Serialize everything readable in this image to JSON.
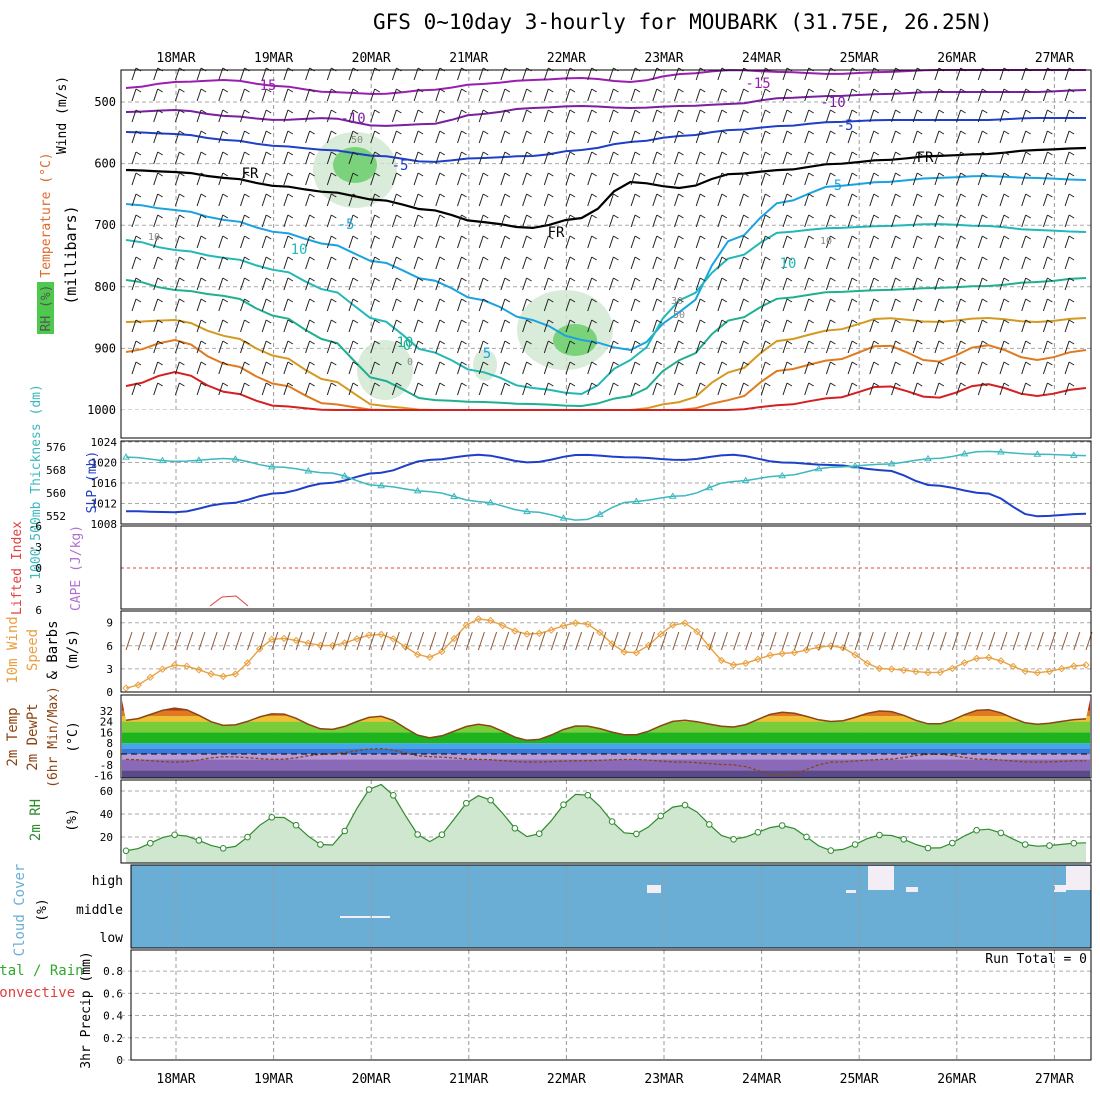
{
  "title": "GFS 0~10day 3-hourly for MOUBARK (31.75E, 26.25N)",
  "date_labels": [
    "18MAR",
    "19MAR",
    "20MAR",
    "21MAR",
    "22MAR",
    "23MAR",
    "24MAR",
    "25MAR",
    "26MAR",
    "27MAR"
  ],
  "panels": {
    "upper": {
      "ylabel_main": "(millibars)",
      "label_wind": "Wind (m/s)",
      "label_temp": "Temperature (°C)",
      "label_rh": "RH (%)",
      "yticks": [
        "500",
        "600",
        "700",
        "800",
        "900",
        "1000"
      ],
      "temp_contour_labels": [
        "15",
        "-15",
        "-10",
        "-10",
        "-5",
        "-5",
        "5",
        "-5",
        "10",
        "10",
        "5",
        "10",
        "0",
        "FR",
        "FR",
        "FR"
      ],
      "rh_contour_labels": [
        "50",
        "10",
        "10",
        "30",
        "50",
        "0"
      ]
    },
    "slp": {
      "label_thick": "1000-500mb Thickness (dm)",
      "label_slp": "SLP (mb)",
      "left_ticks": [
        "576",
        "568",
        "560",
        "552"
      ],
      "right_ticks": [
        "1024",
        "1020",
        "1016",
        "1012",
        "1008"
      ]
    },
    "cape": {
      "label_li": "Lifted Index",
      "label_cape": "CAPE (J/kg)",
      "ticks": [
        "-6",
        "-3",
        "0",
        "3",
        "6"
      ]
    },
    "wind10": {
      "label1": "10m Wind",
      "label2": "Speed",
      "label3": "& Barbs",
      "unit": "(m/s)",
      "ticks": [
        "9",
        "6",
        "3",
        "0"
      ]
    },
    "temp2m": {
      "label1": "2m Temp",
      "label2": "2m DewPt",
      "label3": "(6hr Min/Max)",
      "unit": "(°C)",
      "ticks": [
        "32",
        "24",
        "16",
        "8",
        "0",
        "-8",
        "-16"
      ]
    },
    "rh2m": {
      "label": "2m RH",
      "unit": "(%)",
      "ticks": [
        "60",
        "40",
        "20"
      ]
    },
    "cloud": {
      "label": "Cloud Cover",
      "unit": "(%)",
      "ticks": [
        "high",
        "middle",
        "low"
      ]
    },
    "precip": {
      "label_main": "3hr Precip (mm)",
      "label_total": "Total / Rain",
      "label_conv": "Convective",
      "run_total": "Run Total = 0",
      "ticks": [
        "0.8",
        "0.6",
        "0.4",
        "0.2",
        "0"
      ]
    }
  },
  "colors": {
    "slp": "#1f3fc8",
    "thickness": "#3cb8c0",
    "wind_speed": "#e8a040",
    "rh_line": "#2e8b2e",
    "cloud": "#6aaed6",
    "lifted_index": "#e04040",
    "cape": "#b070d0",
    "temp_line": "#8b4513"
  },
  "chart_data": [
    {
      "type": "line",
      "title": "SLP (mb)",
      "x": [
        "18MAR00",
        "18MAR12",
        "19MAR00",
        "19MAR12",
        "20MAR00",
        "20MAR12",
        "21MAR00",
        "21MAR12",
        "22MAR00",
        "22MAR12",
        "23MAR00",
        "23MAR12",
        "24MAR00",
        "24MAR12",
        "25MAR00",
        "25MAR12",
        "26MAR00",
        "26MAR12",
        "27MAR00",
        "27MAR06"
      ],
      "values": [
        1010.5,
        1010.3,
        1012.0,
        1014.0,
        1016.0,
        1018.0,
        1020.5,
        1021.5,
        1020.0,
        1021.5,
        1021.0,
        1020.5,
        1021.5,
        1020.0,
        1019.5,
        1018.5,
        1015.5,
        1014.0,
        1009.5,
        1010.0
      ],
      "ylim": [
        1008,
        1024
      ]
    },
    {
      "type": "line",
      "title": "1000-500mb Thickness (dm)",
      "x": [
        "18MAR00",
        "18MAR12",
        "19MAR00",
        "19MAR12",
        "20MAR00",
        "20MAR12",
        "21MAR00",
        "21MAR12",
        "22MAR00",
        "22MAR12",
        "23MAR00",
        "23MAR12",
        "24MAR00",
        "24MAR12",
        "25MAR00",
        "25MAR12",
        "26MAR00",
        "26MAR12",
        "27MAR00",
        "27MAR06"
      ],
      "values": [
        572.5,
        571.0,
        572.0,
        569.0,
        567.0,
        562.5,
        560.5,
        557.0,
        553.5,
        550.5,
        557.0,
        559.0,
        564.0,
        566.0,
        569.0,
        570.0,
        572.0,
        574.5,
        573.5,
        573.0
      ],
      "ylim": [
        548,
        578
      ]
    },
    {
      "type": "line",
      "title": "10m Wind Speed (m/s)",
      "x": [
        "18MAR00",
        "18MAR12",
        "19MAR00",
        "19MAR12",
        "20MAR00",
        "20MAR12",
        "21MAR00",
        "21MAR12",
        "22MAR00",
        "22MAR12",
        "23MAR00",
        "23MAR12",
        "24MAR00",
        "24MAR12",
        "25MAR00",
        "25MAR12",
        "26MAR00",
        "26MAR12",
        "27MAR00",
        "27MAR06"
      ],
      "values": [
        0.5,
        3.5,
        2.0,
        7.0,
        6.0,
        7.5,
        4.5,
        9.5,
        7.5,
        9.0,
        5.0,
        9.0,
        3.5,
        5.0,
        6.0,
        3.0,
        2.5,
        4.5,
        2.5,
        3.5
      ],
      "ylim": [
        0,
        10
      ]
    },
    {
      "type": "area",
      "title": "2m Temp (°C)",
      "x": [
        "18MAR00",
        "18MAR12",
        "19MAR00",
        "19MAR12",
        "20MAR00",
        "20MAR12",
        "21MAR00",
        "21MAR12",
        "22MAR00",
        "22MAR12",
        "23MAR00",
        "23MAR12",
        "24MAR00",
        "24MAR12",
        "25MAR00",
        "25MAR12",
        "26MAR00",
        "26MAR12",
        "27MAR00",
        "27MAR06"
      ],
      "values": [
        25.0,
        34.0,
        21.0,
        30.0,
        18.0,
        28.0,
        12.0,
        22.0,
        10.0,
        21.0,
        14.0,
        25.0,
        20.0,
        31.0,
        24.0,
        32.0,
        22.0,
        33.0,
        22.0,
        26.0
      ],
      "ylim": [
        -20,
        36
      ]
    },
    {
      "type": "area",
      "title": "2m RH (%)",
      "x": [
        "18MAR00",
        "18MAR12",
        "19MAR00",
        "19MAR12",
        "20MAR00",
        "20MAR12",
        "21MAR00",
        "21MAR12",
        "22MAR00",
        "22MAR12",
        "23MAR00",
        "23MAR12",
        "24MAR00",
        "24MAR12",
        "25MAR00",
        "25MAR12",
        "26MAR00",
        "26MAR12",
        "27MAR00",
        "27MAR06"
      ],
      "values": [
        8,
        22,
        10,
        38,
        12,
        66,
        16,
        56,
        20,
        58,
        22,
        48,
        18,
        30,
        8,
        22,
        10,
        27,
        12,
        15
      ],
      "ylim": [
        0,
        70
      ]
    }
  ]
}
